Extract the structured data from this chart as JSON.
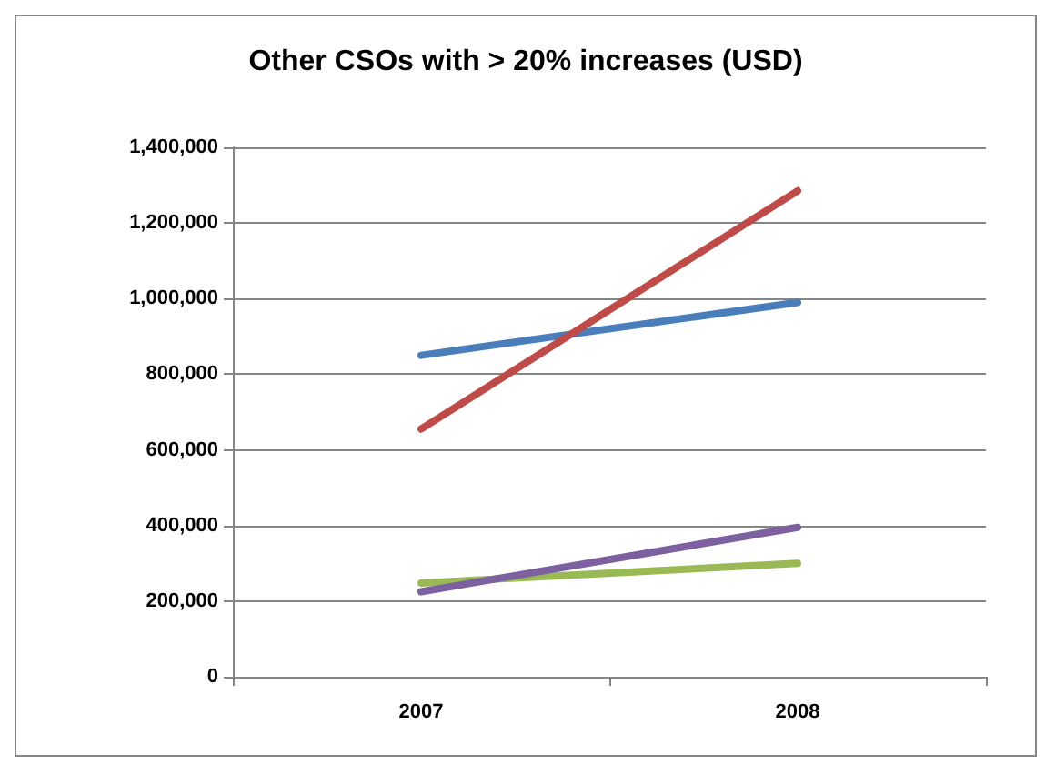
{
  "chart_data": {
    "type": "line",
    "title": "Other CSOs with > 20% increases (USD)",
    "categories": [
      "2007",
      "2008"
    ],
    "series": [
      {
        "color": "#4a7ebb",
        "values": [
          850000,
          990000
        ]
      },
      {
        "color": "#be4b48",
        "values": [
          655000,
          1285000
        ]
      },
      {
        "color": "#98b954",
        "values": [
          248000,
          300000
        ]
      },
      {
        "color": "#7d60a0",
        "values": [
          225000,
          395000
        ]
      }
    ],
    "ylim": [
      0,
      1400000
    ],
    "yticks": [
      0,
      {
        "value": 200000,
        "label": "200,000"
      },
      {
        "value": 400000,
        "label": "400,000"
      },
      {
        "value": 600000,
        "label": "600,000"
      },
      {
        "value": 800000,
        "label": "800,000"
      },
      {
        "value": 1000000,
        "label": "1,000,000"
      },
      {
        "value": 1200000,
        "label": "1,200,000"
      },
      {
        "value": 1400000,
        "label": "1,400,000"
      }
    ],
    "grid": "y",
    "marker": "none",
    "line_style": "solid"
  }
}
